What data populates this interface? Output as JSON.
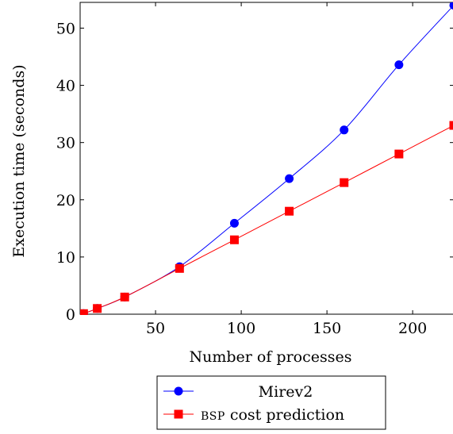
{
  "chart_data": {
    "type": "line",
    "xlabel": "Number of processes",
    "ylabel": "Execution time (seconds)",
    "xlim": [
      6,
      224
    ],
    "ylim": [
      0,
      54.5
    ],
    "xticks": [
      50,
      100,
      150,
      200
    ],
    "yticks": [
      0,
      10,
      20,
      30,
      40,
      50
    ],
    "grid": false,
    "legend_position": "bottom-outside",
    "series": [
      {
        "name": "Mirev2",
        "color": "#0000ff",
        "marker": "circle",
        "x": [
          8,
          16,
          32,
          64,
          96,
          128,
          160,
          192,
          224
        ],
        "y": [
          0.1,
          1.0,
          3.0,
          8.3,
          15.9,
          23.7,
          32.2,
          43.6,
          54.0
        ]
      },
      {
        "name": "BSP cost prediction",
        "name_prefix_smallcaps": "BSP",
        "name_suffix": " cost prediction",
        "color": "#ff0000",
        "marker": "square",
        "x": [
          8,
          16,
          32,
          64,
          96,
          128,
          160,
          192,
          224
        ],
        "y": [
          0.1,
          1.0,
          3.0,
          8.0,
          13.0,
          18.0,
          23.0,
          28.0,
          33.0
        ]
      }
    ]
  }
}
